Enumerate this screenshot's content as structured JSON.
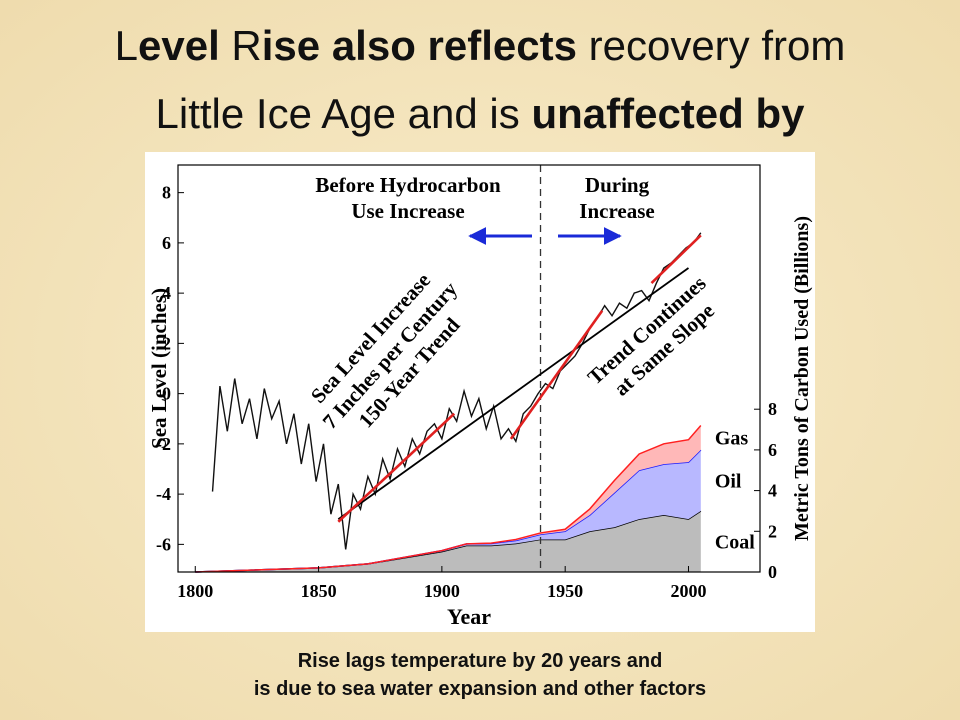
{
  "slide": {
    "title_lines": [
      [
        {
          "text": "L",
          "bold": false
        },
        {
          "text": "evel",
          "bold": true
        },
        {
          "text": " R",
          "bold": false
        },
        {
          "text": "ise also reflects",
          "bold": true
        },
        {
          "text": " recovery from",
          "bold": false
        }
      ],
      [
        {
          "text": "Little Ice Age and is ",
          "bold": false
        },
        {
          "text": "unaffected by",
          "bold": true
        }
      ]
    ],
    "caption": [
      "Rise lags temperature by 20 years and",
      "is due to sea water expansion and other factors"
    ]
  },
  "chart_data": {
    "type": "line",
    "xlabel": "Year",
    "ylabel": "Sea Level (inches)",
    "y2label": "Metric Tons of Carbon Used (Billions)",
    "xlim": [
      1793,
      2029
    ],
    "xticks": [
      1800,
      1850,
      1900,
      1950,
      2000
    ],
    "ylim": [
      -7.1,
      9.1
    ],
    "yticks": [
      -6,
      -4,
      -2,
      0,
      2,
      4,
      6,
      8
    ],
    "y2lim": [
      0,
      20
    ],
    "y2ticks": [
      0,
      2,
      4,
      6,
      8
    ],
    "vline": 1940,
    "x": [
      1807,
      1810,
      1813,
      1816,
      1819,
      1822,
      1825,
      1828,
      1831,
      1834,
      1837,
      1840,
      1843,
      1846,
      1849,
      1852,
      1855,
      1858,
      1861,
      1864,
      1867,
      1870,
      1873,
      1876,
      1879,
      1882,
      1885,
      1888,
      1891,
      1894,
      1897,
      1900,
      1903,
      1906,
      1909,
      1912,
      1915,
      1918,
      1921,
      1924,
      1927,
      1930,
      1933,
      1936,
      1939,
      1942,
      1945,
      1948,
      1951,
      1954,
      1957,
      1960,
      1963,
      1966,
      1969,
      1972,
      1975,
      1978,
      1981,
      1984,
      1987,
      1990,
      1993,
      1996,
      1999,
      2002,
      2005
    ],
    "series": [
      {
        "color": "#111111",
        "values": [
          -3.9,
          0.3,
          -1.5,
          0.6,
          -1.2,
          -0.2,
          -1.8,
          0.2,
          -1.0,
          -0.3,
          -2.0,
          -0.8,
          -2.8,
          -1.2,
          -3.5,
          -2.0,
          -4.8,
          -3.6,
          -6.2,
          -4.0,
          -4.6,
          -3.3,
          -4.0,
          -2.6,
          -3.4,
          -2.2,
          -2.9,
          -1.8,
          -2.4,
          -1.5,
          -1.2,
          -1.8,
          -0.6,
          -1.1,
          0.1,
          -0.9,
          -0.2,
          -1.4,
          -0.5,
          -1.8,
          -1.4,
          -1.9,
          -0.8,
          -0.5,
          0.0,
          0.4,
          0.2,
          0.9,
          1.2,
          1.5,
          2.0,
          2.6,
          3.0,
          3.5,
          3.1,
          3.6,
          3.4,
          4.0,
          4.1,
          3.7,
          4.4,
          5.0,
          5.2,
          5.5,
          5.8,
          6.0,
          6.4
        ]
      }
    ],
    "trend_lines": [
      {
        "color": "#000000",
        "x": [
          1858,
          2000
        ],
        "y": [
          -5.0,
          5.0
        ]
      },
      {
        "color": "#e02020",
        "x": [
          1858,
          1905
        ],
        "y": [
          -5.1,
          -0.8
        ]
      },
      {
        "color": "#e02020",
        "x": [
          1928,
          1965
        ],
        "y": [
          -1.8,
          3.3
        ]
      },
      {
        "color": "#e02020",
        "x": [
          1985,
          2005
        ],
        "y": [
          4.4,
          6.3
        ]
      }
    ],
    "area_x": [
      1800,
      1850,
      1870,
      1900,
      1910,
      1920,
      1930,
      1940,
      1950,
      1960,
      1970,
      1980,
      1990,
      2000,
      2005
    ],
    "area_series": [
      {
        "name": "Coal",
        "color": "#bcbcbc",
        "line": "#000000",
        "values": [
          0,
          0.2,
          0.4,
          1.0,
          1.3,
          1.3,
          1.4,
          1.6,
          1.6,
          2.0,
          2.2,
          2.6,
          2.8,
          2.6,
          3.0
        ]
      },
      {
        "name": "Oil",
        "color": "#b8b8ff",
        "line": "#1a1aff",
        "values": [
          0,
          0,
          0,
          0.05,
          0.08,
          0.1,
          0.15,
          0.25,
          0.4,
          0.8,
          1.7,
          2.4,
          2.5,
          2.8,
          3.0
        ]
      },
      {
        "name": "Gas",
        "color": "#ffb8b8",
        "line": "#ff2020",
        "values": [
          0,
          0,
          0,
          0,
          0,
          0.02,
          0.05,
          0.07,
          0.1,
          0.3,
          0.6,
          0.8,
          1.0,
          1.1,
          1.2
        ]
      }
    ],
    "annotations": [
      {
        "lines": [
          "Before Hydrocarbon",
          "Use Increase"
        ]
      },
      {
        "lines": [
          "During",
          "Increase"
        ]
      },
      {
        "lines": [
          "Sea Level Increase",
          "7 Inches per Century",
          "150-Year Trend"
        ]
      },
      {
        "lines": [
          "Trend Continues",
          "at Same Slope"
        ]
      }
    ]
  }
}
